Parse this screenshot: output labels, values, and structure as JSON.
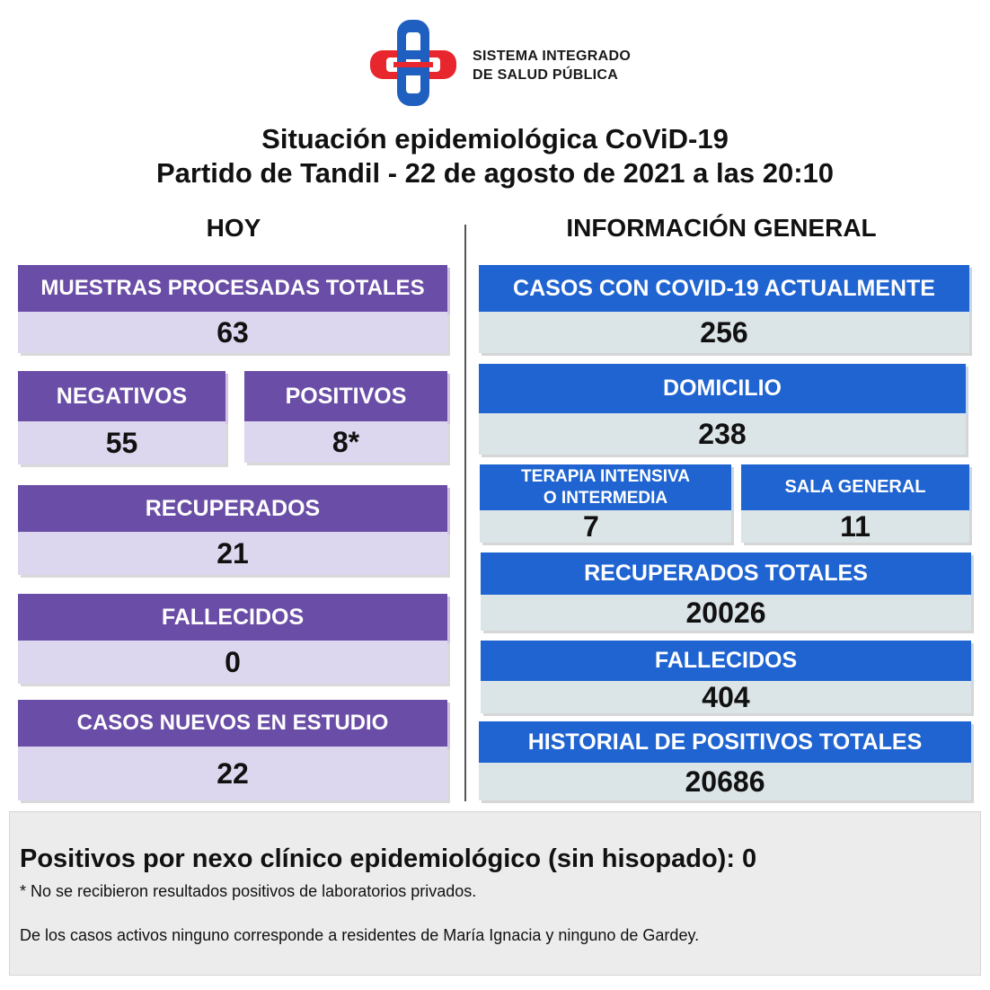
{
  "logo": {
    "line1": "SISTEMA INTEGRADO",
    "line2": "DE SALUD PÚBLICA",
    "colors": {
      "red": "#e8262e",
      "blue": "#1f5fbf"
    }
  },
  "title": {
    "line1": "Situación epidemiológica CoViD-19",
    "line2": "Partido de Tandil - 22 de agosto de 2021 a las 20:10"
  },
  "hoy": {
    "heading": "HOY",
    "muestras": {
      "label": "MUESTRAS PROCESADAS TOTALES",
      "value": "63"
    },
    "negativos": {
      "label": "NEGATIVOS",
      "value": "55"
    },
    "positivos": {
      "label": "POSITIVOS",
      "value": "8*"
    },
    "recuperados": {
      "label": "RECUPERADOS",
      "value": "21"
    },
    "fallecidos": {
      "label": "FALLECIDOS",
      "value": "0"
    },
    "casos_nuevos": {
      "label": "CASOS NUEVOS EN ESTUDIO",
      "value": "22"
    }
  },
  "general": {
    "heading": "INFORMACIÓN GENERAL",
    "casos_actuales": {
      "label": "CASOS CON COVID-19 ACTUALMENTE",
      "value": "256"
    },
    "domicilio": {
      "label": "DOMICILIO",
      "value": "238"
    },
    "terapia": {
      "label_line1": "TERAPIA INTENSIVA",
      "label_line2": "O INTERMEDIA",
      "value": "7"
    },
    "sala": {
      "label": "SALA GENERAL",
      "value": "11"
    },
    "recuperados_totales": {
      "label": "RECUPERADOS TOTALES",
      "value": "20026"
    },
    "fallecidos": {
      "label": "FALLECIDOS",
      "value": "404"
    },
    "historial": {
      "label": "HISTORIAL DE POSITIVOS TOTALES",
      "value": "20686"
    }
  },
  "footer": {
    "main": "Positivos por nexo clínico epidemiológico (sin hisopado): 0",
    "note1": "* No se recibieron resultados positivos de laboratorios privados.",
    "note2": "De los casos activos ninguno corresponde a residentes de María Ignacia y ninguno de Gardey."
  },
  "colors": {
    "purple_header": "#6a4da6",
    "lavender_value": "#dcd6ee",
    "blue_header": "#1f64d1",
    "gray_value": "#dbe4e7"
  }
}
